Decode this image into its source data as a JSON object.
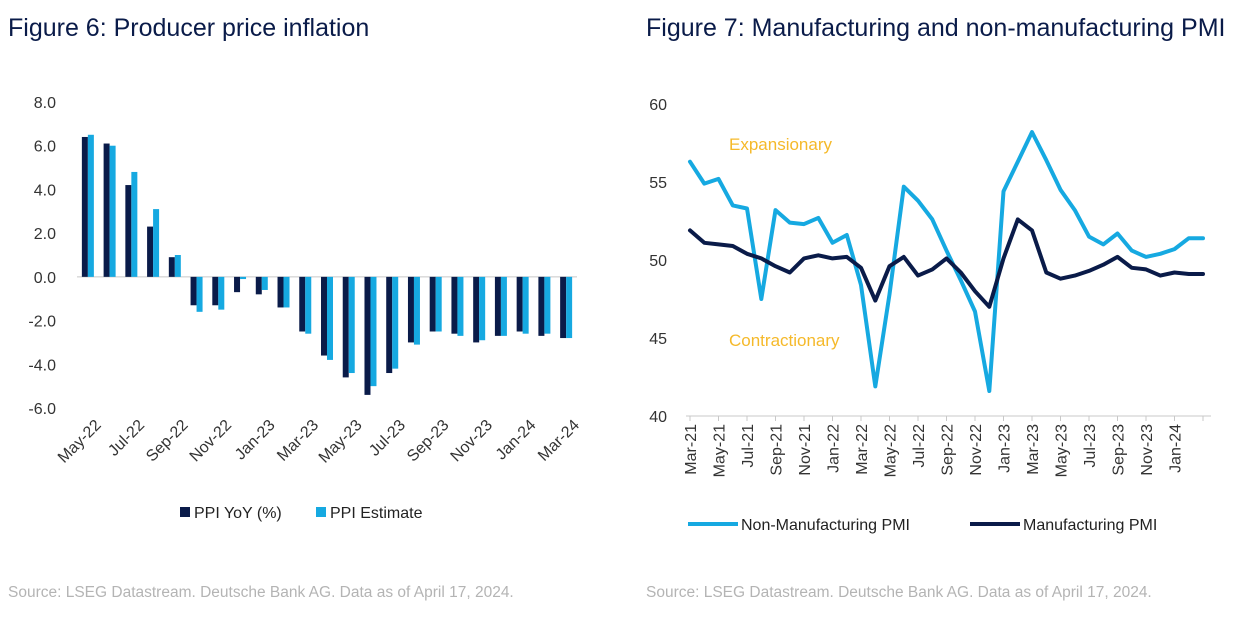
{
  "left": {
    "title": "Figure 6: Producer price inflation",
    "source": "Source: LSEG Datastream. Deutsche Bank AG. Data as of April 17, 2024."
  },
  "right": {
    "title": "Figure 7: Manufacturing and non-manufacturing PMI",
    "source": "Source: LSEG Datastream. Deutsche Bank AG. Data as of April 17, 2024."
  },
  "colors": {
    "dark": "#0a1b49",
    "light": "#16a9e1",
    "annotation": "#f5b92a",
    "axis": "#c8c8c8"
  },
  "chart_data": [
    {
      "type": "bar",
      "title": "Figure 6: Producer price inflation",
      "ylim": [
        -6.0,
        8.0
      ],
      "yticks": [
        "8.0",
        "6.0",
        "4.0",
        "2.0",
        "0.0",
        "-2.0",
        "-4.0",
        "-6.0"
      ],
      "ytick_values": [
        8,
        6,
        4,
        2,
        0,
        -2,
        -4,
        -6
      ],
      "categories": [
        "May-22",
        "Jun-22",
        "Jul-22",
        "Aug-22",
        "Sep-22",
        "Oct-22",
        "Nov-22",
        "Dec-22",
        "Jan-23",
        "Feb-23",
        "Mar-23",
        "Apr-23",
        "May-23",
        "Jun-23",
        "Jul-23",
        "Aug-23",
        "Sep-23",
        "Oct-23",
        "Nov-23",
        "Dec-23",
        "Jan-24",
        "Feb-24",
        "Mar-24"
      ],
      "xtick_labels": [
        "May-22",
        "Jul-22",
        "Sep-22",
        "Nov-22",
        "Jan-23",
        "Mar-23",
        "May-23",
        "Jul-23",
        "Sep-23",
        "Nov-23",
        "Jan-24",
        "Mar-24"
      ],
      "series": [
        {
          "name": "PPI YoY (%)",
          "values": [
            6.4,
            6.1,
            4.2,
            2.3,
            0.9,
            -1.3,
            -1.3,
            -0.7,
            -0.8,
            -1.4,
            -2.5,
            -3.6,
            -4.6,
            -5.4,
            -4.4,
            -3.0,
            -2.5,
            -2.6,
            -3.0,
            -2.7,
            -2.5,
            -2.7,
            -2.8
          ]
        },
        {
          "name": "PPI Estimate",
          "values": [
            6.5,
            6.0,
            4.8,
            3.1,
            1.0,
            -1.6,
            -1.5,
            -0.1,
            -0.6,
            -1.4,
            -2.6,
            -3.8,
            -4.4,
            -5.0,
            -4.2,
            -3.1,
            -2.5,
            -2.7,
            -2.9,
            -2.7,
            -2.6,
            -2.6,
            -2.8
          ]
        }
      ],
      "legend": [
        "PPI YoY (%)",
        "PPI Estimate"
      ]
    },
    {
      "type": "line",
      "title": "Figure 7: Manufacturing and non-manufacturing PMI",
      "ylim": [
        40,
        60
      ],
      "yticks": [
        "60",
        "55",
        "50",
        "45",
        "40"
      ],
      "ytick_values": [
        60,
        55,
        50,
        45,
        40
      ],
      "x": [
        "Mar-21",
        "Apr-21",
        "May-21",
        "Jun-21",
        "Jul-21",
        "Aug-21",
        "Sep-21",
        "Oct-21",
        "Nov-21",
        "Dec-21",
        "Jan-22",
        "Feb-22",
        "Mar-22",
        "Apr-22",
        "May-22",
        "Jun-22",
        "Jul-22",
        "Aug-22",
        "Sep-22",
        "Oct-22",
        "Nov-22",
        "Dec-22",
        "Jan-23",
        "Feb-23",
        "Mar-23",
        "Apr-23",
        "May-23",
        "Jun-23",
        "Jul-23",
        "Aug-23",
        "Sep-23",
        "Oct-23",
        "Nov-23",
        "Dec-23",
        "Jan-24",
        "Feb-24",
        "Mar-24"
      ],
      "xtick_labels": [
        "Mar-21",
        "May-21",
        "Jul-21",
        "Sep-21",
        "Nov-21",
        "Jan-22",
        "Mar-22",
        "May-22",
        "Jul-22",
        "Sep-22",
        "Nov-22",
        "Jan-23",
        "Mar-23",
        "May-23",
        "Jul-23",
        "Sep-23",
        "Nov-23",
        "Jan-24"
      ],
      "series": [
        {
          "name": "Non-Manufacturing PMI",
          "values": [
            56.3,
            54.9,
            55.2,
            53.5,
            53.3,
            47.5,
            53.2,
            52.4,
            52.3,
            52.7,
            51.1,
            51.6,
            48.4,
            41.9,
            47.8,
            54.7,
            53.8,
            52.6,
            50.6,
            48.7,
            46.7,
            41.6,
            54.4,
            56.3,
            58.2,
            56.4,
            54.5,
            53.2,
            51.5,
            51.0,
            51.7,
            50.6,
            50.2,
            50.4,
            50.7,
            51.4,
            51.4
          ]
        },
        {
          "name": "Manufacturing PMI",
          "values": [
            51.9,
            51.1,
            51.0,
            50.9,
            50.4,
            50.1,
            49.6,
            49.2,
            50.1,
            50.3,
            50.1,
            50.2,
            49.5,
            47.4,
            49.6,
            50.2,
            49.0,
            49.4,
            50.1,
            49.2,
            48.0,
            47.0,
            50.1,
            52.6,
            51.9,
            49.2,
            48.8,
            49.0,
            49.3,
            49.7,
            50.2,
            49.5,
            49.4,
            49.0,
            49.2,
            49.1,
            49.1
          ]
        }
      ],
      "annotations": [
        "Expansionary",
        "Contractionary"
      ],
      "legend": [
        "Non-Manufacturing PMI",
        "Manufacturing PMI"
      ]
    }
  ]
}
